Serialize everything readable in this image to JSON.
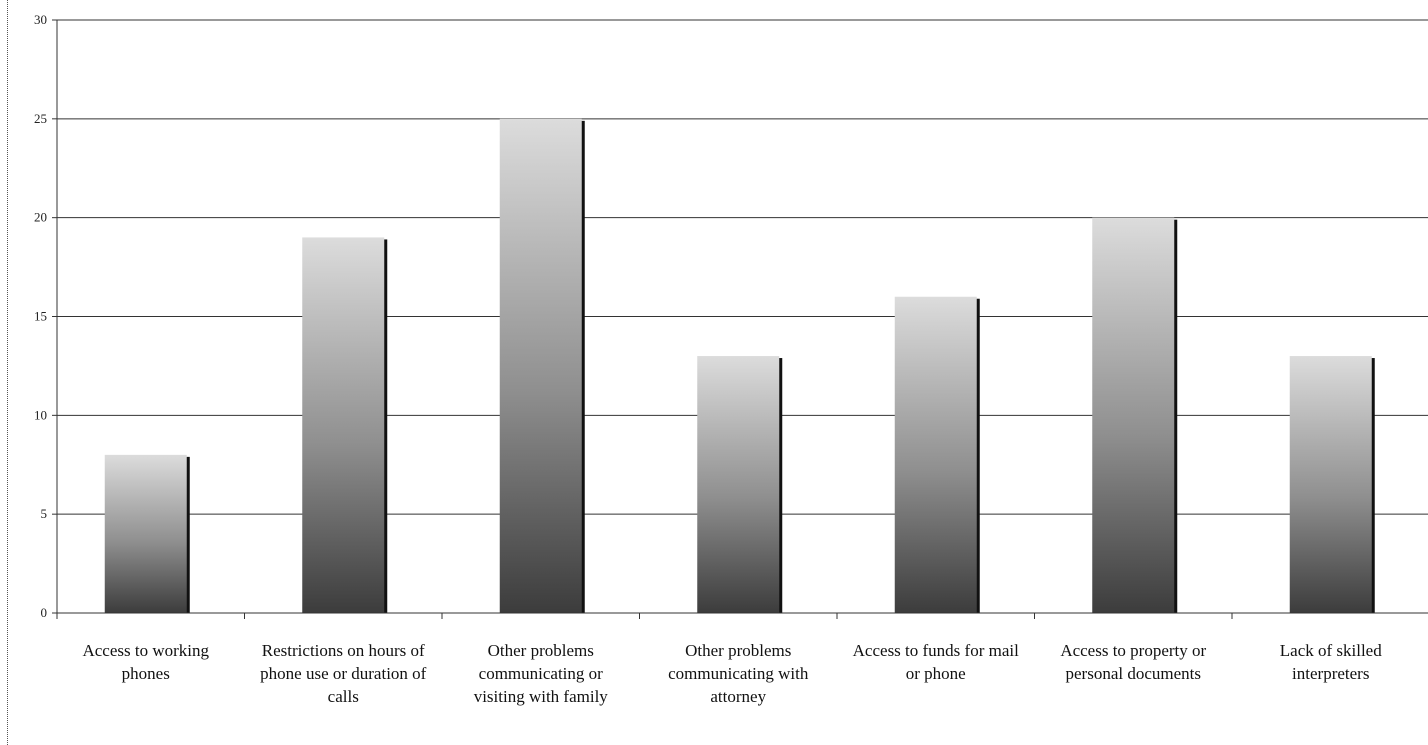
{
  "chart_data": {
    "type": "bar",
    "categories": [
      "Access to working phones",
      "Restrictions on hours of phone use or duration of calls",
      "Other problems communicating or visiting with family",
      "Other problems communicating with attorney",
      "Access to funds for mail or phone",
      "Access to property or personal documents",
      "Lack of skilled interpreters"
    ],
    "category_lines": [
      [
        "Access to working",
        "phones"
      ],
      [
        "Restrictions on hours of",
        "phone use or duration of",
        "calls"
      ],
      [
        "Other problems",
        "communicating or",
        "visiting with family"
      ],
      [
        "Other problems",
        "communicating with",
        "attorney"
      ],
      [
        "Access to funds for mail",
        "or phone"
      ],
      [
        "Access to property or",
        "personal documents"
      ],
      [
        "Lack of skilled",
        "interpreters"
      ]
    ],
    "values": [
      8,
      19,
      25,
      13,
      16,
      20,
      13
    ],
    "yticks": [
      "0",
      "5",
      "10",
      "15",
      "20",
      "25",
      "30"
    ],
    "ylim": [
      0,
      30
    ],
    "grid": true,
    "title": "",
    "xlabel": "",
    "ylabel": "",
    "bar_color_top": "#dcdcdc",
    "bar_color_bottom": "#3c3c3c"
  }
}
